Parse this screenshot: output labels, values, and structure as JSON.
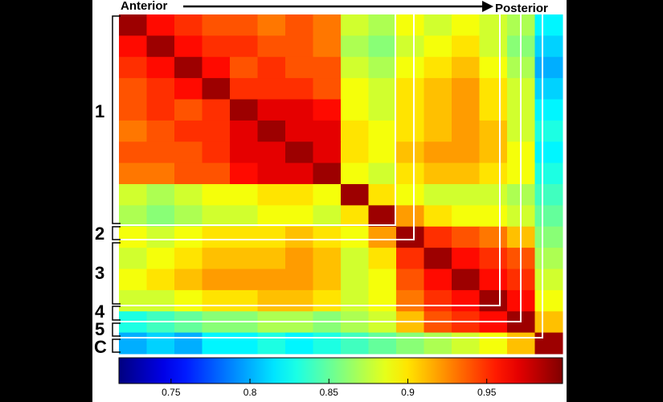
{
  "chart_data": {
    "type": "heatmap",
    "colormap": "jet",
    "zlim": [
      0.717,
      0.998
    ],
    "zticks": [
      0.75,
      0.8,
      0.85,
      0.9,
      0.95
    ],
    "start_label": "Anterior",
    "end_label": "Posterior",
    "groups": [
      "1",
      "2",
      "3",
      "4",
      "5",
      "C"
    ],
    "z": [
      [
        0.99,
        0.96,
        0.95,
        0.94,
        0.94,
        0.93,
        0.94,
        0.93,
        0.88,
        0.87,
        0.89,
        0.88,
        0.89,
        0.88,
        0.87,
        0.82
      ],
      [
        0.96,
        0.99,
        0.96,
        0.95,
        0.95,
        0.94,
        0.94,
        0.93,
        0.87,
        0.86,
        0.88,
        0.89,
        0.9,
        0.88,
        0.86,
        0.81
      ],
      [
        0.95,
        0.96,
        0.99,
        0.96,
        0.94,
        0.95,
        0.94,
        0.94,
        0.88,
        0.87,
        0.89,
        0.9,
        0.91,
        0.89,
        0.87,
        0.8
      ],
      [
        0.94,
        0.95,
        0.96,
        0.99,
        0.95,
        0.95,
        0.95,
        0.94,
        0.89,
        0.88,
        0.9,
        0.91,
        0.92,
        0.9,
        0.88,
        0.81
      ],
      [
        0.94,
        0.95,
        0.94,
        0.95,
        0.99,
        0.97,
        0.97,
        0.96,
        0.89,
        0.88,
        0.9,
        0.91,
        0.92,
        0.9,
        0.88,
        0.82
      ],
      [
        0.93,
        0.94,
        0.95,
        0.95,
        0.97,
        0.99,
        0.97,
        0.97,
        0.9,
        0.89,
        0.9,
        0.91,
        0.92,
        0.91,
        0.88,
        0.83
      ],
      [
        0.94,
        0.94,
        0.94,
        0.95,
        0.97,
        0.97,
        0.99,
        0.97,
        0.9,
        0.89,
        0.91,
        0.92,
        0.92,
        0.91,
        0.89,
        0.82
      ],
      [
        0.93,
        0.93,
        0.94,
        0.94,
        0.96,
        0.97,
        0.97,
        0.99,
        0.89,
        0.88,
        0.9,
        0.91,
        0.91,
        0.9,
        0.89,
        0.83
      ],
      [
        0.88,
        0.87,
        0.88,
        0.89,
        0.89,
        0.9,
        0.9,
        0.89,
        0.99,
        0.9,
        0.89,
        0.88,
        0.88,
        0.88,
        0.87,
        0.84
      ],
      [
        0.87,
        0.86,
        0.87,
        0.88,
        0.88,
        0.89,
        0.89,
        0.88,
        0.9,
        0.99,
        0.92,
        0.9,
        0.89,
        0.89,
        0.88,
        0.85
      ],
      [
        0.89,
        0.88,
        0.89,
        0.9,
        0.9,
        0.9,
        0.91,
        0.9,
        0.89,
        0.92,
        0.99,
        0.95,
        0.94,
        0.93,
        0.91,
        0.86
      ],
      [
        0.88,
        0.89,
        0.9,
        0.91,
        0.91,
        0.91,
        0.92,
        0.91,
        0.88,
        0.9,
        0.95,
        0.99,
        0.96,
        0.95,
        0.94,
        0.87
      ],
      [
        0.89,
        0.9,
        0.91,
        0.92,
        0.92,
        0.92,
        0.92,
        0.91,
        0.88,
        0.89,
        0.94,
        0.96,
        0.99,
        0.96,
        0.95,
        0.88
      ],
      [
        0.88,
        0.88,
        0.89,
        0.9,
        0.9,
        0.91,
        0.91,
        0.9,
        0.88,
        0.89,
        0.93,
        0.95,
        0.96,
        0.99,
        0.96,
        0.89
      ],
      [
        0.83,
        0.84,
        0.85,
        0.86,
        0.86,
        0.87,
        0.87,
        0.86,
        0.87,
        0.88,
        0.91,
        0.94,
        0.95,
        0.96,
        0.99,
        0.91
      ],
      [
        0.8,
        0.81,
        0.8,
        0.82,
        0.82,
        0.83,
        0.82,
        0.83,
        0.84,
        0.85,
        0.86,
        0.87,
        0.88,
        0.89,
        0.91,
        0.99
      ]
    ]
  }
}
